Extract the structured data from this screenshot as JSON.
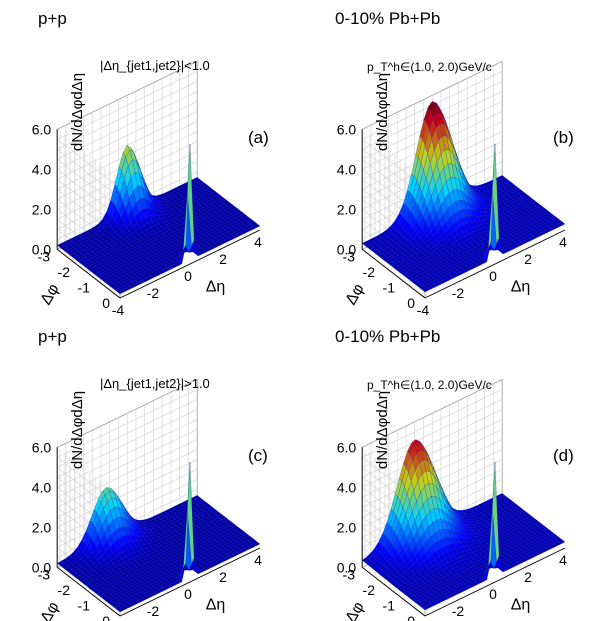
{
  "chart_data": [
    {
      "type": "surface",
      "panel_label": "(a)",
      "header": "p+p",
      "cut_text": "|Δη_{jet1,jet2}|<1.0",
      "zlabel": "dN/dΔφdΔη",
      "xlabel": "Δη",
      "ylabel": "Δφ",
      "zlim": [
        0,
        6.0
      ],
      "z_ticks": [
        "0.0",
        "2.0",
        "4.0",
        "6.0"
      ],
      "eta_ticks": [
        "-4",
        "-2",
        "0",
        "2",
        "4"
      ],
      "phi_ticks": [
        "0",
        "-1",
        "-2",
        "-3"
      ],
      "x_range": [
        -4,
        4
      ],
      "y_range": [
        -3.14,
        0
      ],
      "peaks": [
        {
          "desc": "near-side peak",
          "eta": 0,
          "phi": 0,
          "height": 6.0,
          "eta_sigma": 0.12,
          "phi_sigma": 0.12
        },
        {
          "desc": "away-side peak",
          "eta": 0,
          "phi": -3.14,
          "height": 3.3,
          "eta_sigma": 0.6,
          "phi_sigma": 0.45
        }
      ],
      "baseline": 0.2
    },
    {
      "type": "surface",
      "panel_label": "(b)",
      "header": "0-10% Pb+Pb",
      "pt_text": "p_T^h∈(1.0, 2.0)GeV/c",
      "zlabel": "dN/dΔφdΔη",
      "xlabel": "Δη",
      "ylabel": "Δφ",
      "zlim": [
        0,
        6.0
      ],
      "z_ticks": [
        "0.0",
        "2.0",
        "4.0",
        "6.0"
      ],
      "eta_ticks": [
        "-4",
        "-2",
        "0",
        "2",
        "4"
      ],
      "phi_ticks": [
        "0",
        "-1",
        "-2",
        "-3"
      ],
      "x_range": [
        -4,
        4
      ],
      "y_range": [
        -3.14,
        0
      ],
      "peaks": [
        {
          "desc": "near-side peak",
          "eta": 0,
          "phi": 0,
          "height": 6.0,
          "eta_sigma": 0.12,
          "phi_sigma": 0.12
        },
        {
          "desc": "away-side peak",
          "eta": 0,
          "phi": -3.14,
          "height": 5.4,
          "eta_sigma": 0.9,
          "phi_sigma": 0.7
        }
      ],
      "baseline": 0.3
    },
    {
      "type": "surface",
      "panel_label": "(c)",
      "header": "p+p",
      "cut_text": "|Δη_{jet1,jet2}|>1.0",
      "zlabel": "dN/dΔφdΔη",
      "xlabel": "Δη",
      "ylabel": "Δφ",
      "zlim": [
        0,
        6.0
      ],
      "z_ticks": [
        "0.0",
        "2.0",
        "4.0",
        "6.0"
      ],
      "eta_ticks": [
        "-4",
        "-2",
        "0",
        "2",
        "4"
      ],
      "phi_ticks": [
        "0",
        "-1",
        "-2",
        "-3"
      ],
      "x_range": [
        -4,
        4
      ],
      "y_range": [
        -3.14,
        0
      ],
      "peaks": [
        {
          "desc": "near-side peak",
          "eta": 0,
          "phi": 0,
          "height": 6.0,
          "eta_sigma": 0.12,
          "phi_sigma": 0.12
        },
        {
          "desc": "away-side peak",
          "eta": -1.2,
          "phi": -3.14,
          "height": 2.6,
          "eta_sigma": 0.8,
          "phi_sigma": 0.5
        }
      ],
      "baseline": 0.2
    },
    {
      "type": "surface",
      "panel_label": "(d)",
      "header": "0-10% Pb+Pb",
      "pt_text": "p_T^h∈(1.0, 2.0)GeV/c",
      "zlabel": "dN/dΔφdΔη",
      "xlabel": "Δη",
      "ylabel": "Δφ",
      "zlim": [
        0,
        6.0
      ],
      "z_ticks": [
        "0.0",
        "2.0",
        "4.0",
        "6.0"
      ],
      "eta_ticks": [
        "-4",
        "-2",
        "0",
        "2",
        "4"
      ],
      "phi_ticks": [
        "0",
        "-1",
        "-2",
        "-3"
      ],
      "x_range": [
        -4,
        4
      ],
      "y_range": [
        -3.14,
        0
      ],
      "peaks": [
        {
          "desc": "near-side peak",
          "eta": 0,
          "phi": 0,
          "height": 6.0,
          "eta_sigma": 0.12,
          "phi_sigma": 0.12
        },
        {
          "desc": "away-side peak",
          "eta": -1.0,
          "phi": -3.14,
          "height": 4.8,
          "eta_sigma": 1.0,
          "phi_sigma": 0.7
        }
      ],
      "baseline": 0.3
    }
  ]
}
